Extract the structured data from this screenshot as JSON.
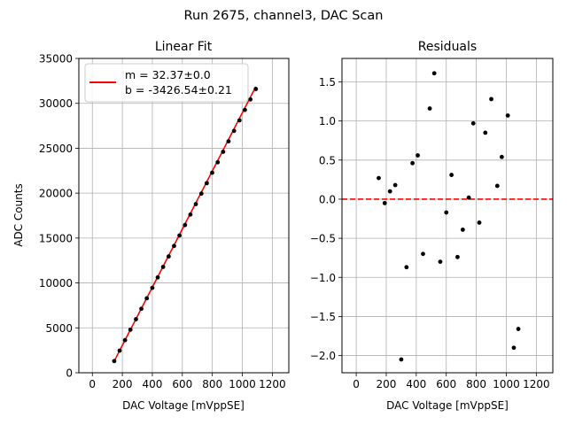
{
  "suptitle": "Run 2675, channel3, DAC Scan",
  "chart_data": [
    {
      "type": "scatter",
      "title": "Linear Fit",
      "xlabel": "DAC Voltage [mVppSE]",
      "ylabel": "ADC Counts",
      "xlim": [
        -90,
        1310
      ],
      "ylim": [
        0,
        35000
      ],
      "xticks": [
        0,
        200,
        400,
        600,
        800,
        1000,
        1200
      ],
      "xtick_labels": [
        "0",
        "200",
        "400",
        "600",
        "800",
        "1000",
        "1200"
      ],
      "yticks": [
        0,
        5000,
        10000,
        15000,
        20000,
        25000,
        30000,
        35000
      ],
      "ytick_labels": [
        "0",
        "5000",
        "10000",
        "15000",
        "20000",
        "25000",
        "30000",
        "35000"
      ],
      "grid": true,
      "legend_position": "top-left",
      "legend": {
        "line1": "m = 32.37±0.0",
        "line2": "b = -3426.54±0.21",
        "color": "#ff0000"
      },
      "fit": {
        "slope": 32.37,
        "intercept": -3426.54,
        "x_range": [
          146,
          1090
        ],
        "color": "#ff0000"
      },
      "points": {
        "color": "#000000",
        "x": [
          146,
          182,
          218,
          254,
          291,
          327,
          363,
          400,
          436,
          472,
          509,
          545,
          581,
          618,
          654,
          690,
          727,
          763,
          799,
          836,
          872,
          908,
          945,
          981,
          1017,
          1054,
          1090
        ],
        "y": [
          1299,
          2464,
          3629,
          4795,
          5961,
          7126,
          8291,
          9456,
          10622,
          11787,
          12952,
          14118,
          15283,
          16448,
          17614,
          18779,
          19944,
          21110,
          22275,
          23440,
          24606,
          25771,
          26937,
          28102,
          29268,
          30433,
          31599
        ]
      }
    },
    {
      "type": "scatter",
      "title": "Residuals",
      "xlabel": "DAC Voltage [mVppSE]",
      "ylabel": "",
      "xlim": [
        -95,
        1310
      ],
      "ylim": [
        -2.22,
        1.8
      ],
      "xticks": [
        0,
        200,
        400,
        600,
        800,
        1000,
        1200
      ],
      "xtick_labels": [
        "0",
        "200",
        "400",
        "600",
        "800",
        "1000",
        "1200"
      ],
      "yticks": [
        -2.0,
        -1.5,
        -1.0,
        -0.5,
        0.0,
        0.5,
        1.0,
        1.5
      ],
      "ytick_labels": [
        "−2.0",
        "−1.5",
        "−1.0",
        "−0.5",
        "0.0",
        "0.5",
        "1.0",
        "1.5"
      ],
      "grid": true,
      "zero_line": {
        "y": 0,
        "color": "#ff0000",
        "style": "dashed"
      },
      "points": {
        "color": "#000000",
        "x": [
          150,
          190,
          225,
          260,
          300,
          335,
          375,
          410,
          445,
          490,
          520,
          560,
          600,
          635,
          675,
          710,
          750,
          780,
          820,
          860,
          900,
          940,
          970,
          1010,
          1050,
          1080
        ],
        "y": [
          0.27,
          -0.05,
          0.1,
          0.18,
          -2.05,
          -0.87,
          0.46,
          0.56,
          -0.7,
          1.16,
          1.61,
          -0.8,
          -0.17,
          0.31,
          -0.74,
          -0.39,
          0.02,
          0.97,
          -0.3,
          0.85,
          1.28,
          0.17,
          0.54,
          1.07,
          -1.9,
          -1.66
        ]
      }
    }
  ]
}
